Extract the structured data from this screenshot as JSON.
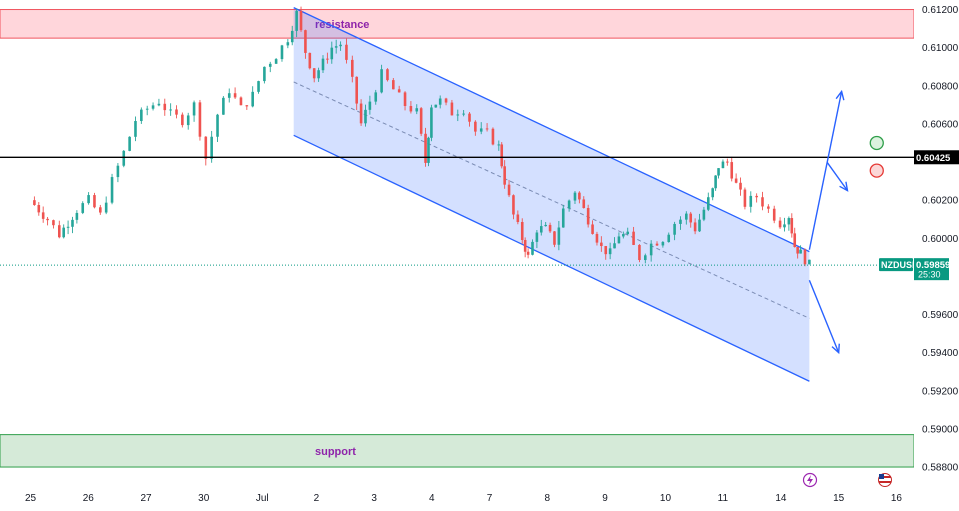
{
  "chart_data": {
    "type": "candlestick",
    "symbol": "NZDUSD",
    "last_price": "0.59859",
    "countdown": "25:30",
    "key_level": {
      "value": 0.60425,
      "label": "0.60425"
    },
    "ylim": [
      0.5869,
      0.6125
    ],
    "y_ticks": [
      "0.61200",
      "0.61000",
      "0.60800",
      "0.60600",
      "0.60425",
      "0.60200",
      "0.60000",
      "0.59600",
      "0.59400",
      "0.59200",
      "0.59000",
      "0.58800"
    ],
    "x_ticks": [
      "25",
      "26",
      "27",
      "30",
      "Jul",
      "2",
      "3",
      "4",
      "7",
      "8",
      "9",
      "10",
      "11",
      "14",
      "15",
      "16"
    ],
    "zones": [
      {
        "label": "resistance",
        "from": 0.6105,
        "to": 0.612,
        "color": "#ffd6db",
        "border": "#f0535e"
      },
      {
        "label": "support",
        "from": 0.588,
        "to": 0.5897,
        "color": "#d5ead8",
        "border": "#2e9e49"
      }
    ],
    "channel": {
      "upper": [
        [
          4.5,
          0.6121
        ],
        [
          13.3,
          0.5993
        ]
      ],
      "lower": [
        [
          4.5,
          0.6054
        ],
        [
          13.3,
          0.5925
        ]
      ],
      "mid": [
        [
          4.5,
          0.6082
        ],
        [
          13.3,
          0.5958
        ]
      ]
    },
    "candle_path": [
      [
        0.0,
        0.602
      ],
      [
        0.3,
        0.601
      ],
      [
        0.5,
        0.6002
      ],
      [
        0.8,
        0.6015
      ],
      [
        1.0,
        0.602
      ],
      [
        1.2,
        0.6012
      ],
      [
        1.4,
        0.603
      ],
      [
        1.6,
        0.6045
      ],
      [
        1.8,
        0.6062
      ],
      [
        2.0,
        0.6068
      ],
      [
        2.2,
        0.6072
      ],
      [
        2.4,
        0.6065
      ],
      [
        2.6,
        0.6062
      ],
      [
        2.8,
        0.607
      ],
      [
        3.0,
        0.6042
      ],
      [
        3.2,
        0.6065
      ],
      [
        3.4,
        0.6078
      ],
      [
        3.6,
        0.6068
      ],
      [
        3.8,
        0.6075
      ],
      [
        4.0,
        0.609
      ],
      [
        4.2,
        0.6096
      ],
      [
        4.4,
        0.6105
      ],
      [
        4.55,
        0.6118
      ],
      [
        4.7,
        0.6098
      ],
      [
        4.85,
        0.6085
      ],
      [
        5.0,
        0.6092
      ],
      [
        5.15,
        0.61
      ],
      [
        5.3,
        0.6102
      ],
      [
        5.5,
        0.6082
      ],
      [
        5.65,
        0.606
      ],
      [
        5.8,
        0.6072
      ],
      [
        6.0,
        0.6086
      ],
      [
        6.2,
        0.6078
      ],
      [
        6.4,
        0.607
      ],
      [
        6.6,
        0.6066
      ],
      [
        6.75,
        0.604
      ],
      [
        6.85,
        0.607
      ],
      [
        7.0,
        0.6072
      ],
      [
        7.2,
        0.6066
      ],
      [
        7.4,
        0.6068
      ],
      [
        7.6,
        0.6056
      ],
      [
        7.8,
        0.6055
      ],
      [
        8.0,
        0.6048
      ],
      [
        8.1,
        0.603
      ],
      [
        8.25,
        0.6012
      ],
      [
        8.4,
        0.6
      ],
      [
        8.5,
        0.599
      ],
      [
        8.65,
        0.6005
      ],
      [
        8.8,
        0.6005
      ],
      [
        8.95,
        0.5998
      ],
      [
        9.1,
        0.6015
      ],
      [
        9.3,
        0.6025
      ],
      [
        9.45,
        0.6015
      ],
      [
        9.6,
        0.6005
      ],
      [
        9.75,
        0.5995
      ],
      [
        9.9,
        0.5992
      ],
      [
        10.05,
        0.6002
      ],
      [
        10.2,
        0.6001
      ],
      [
        10.4,
        0.599
      ],
      [
        10.6,
        0.5997
      ],
      [
        10.8,
        0.6
      ],
      [
        11.0,
        0.6008
      ],
      [
        11.2,
        0.6012
      ],
      [
        11.35,
        0.6005
      ],
      [
        11.5,
        0.6015
      ],
      [
        11.65,
        0.6025
      ],
      [
        11.75,
        0.6038
      ],
      [
        11.9,
        0.604
      ],
      [
        12.05,
        0.6028
      ],
      [
        12.2,
        0.6018
      ],
      [
        12.4,
        0.6022
      ],
      [
        12.6,
        0.6015
      ],
      [
        12.8,
        0.6008
      ],
      [
        12.95,
        0.6012
      ],
      [
        13.05,
        0.5996
      ],
      [
        13.15,
        0.5992
      ],
      [
        13.3,
        0.5986
      ]
    ],
    "candles_per_unit": 12,
    "scenario_arrows": [
      {
        "from": [
          13.3,
          0.5994
        ],
        "to": [
          13.85,
          0.6077
        ]
      },
      {
        "from": [
          13.6,
          0.604
        ],
        "to": [
          13.95,
          0.6025
        ]
      },
      {
        "from": [
          13.3,
          0.5978
        ],
        "to": [
          13.8,
          0.594
        ]
      }
    ],
    "signal_markers": [
      {
        "kind": "buy-target",
        "x": 14.45,
        "y": 0.605,
        "color": "#2e9e49",
        "fill": "#dcf2df"
      },
      {
        "kind": "sell-target",
        "x": 14.45,
        "y": 0.60355,
        "color": "#e53935",
        "fill": "#fbd7d7"
      }
    ],
    "colors": {
      "up": "#26a69a",
      "down": "#ef5350",
      "channel": "#2962ff",
      "channel_fill": "#2962ff",
      "key_level": "#000000",
      "last_price": "#089981"
    }
  }
}
